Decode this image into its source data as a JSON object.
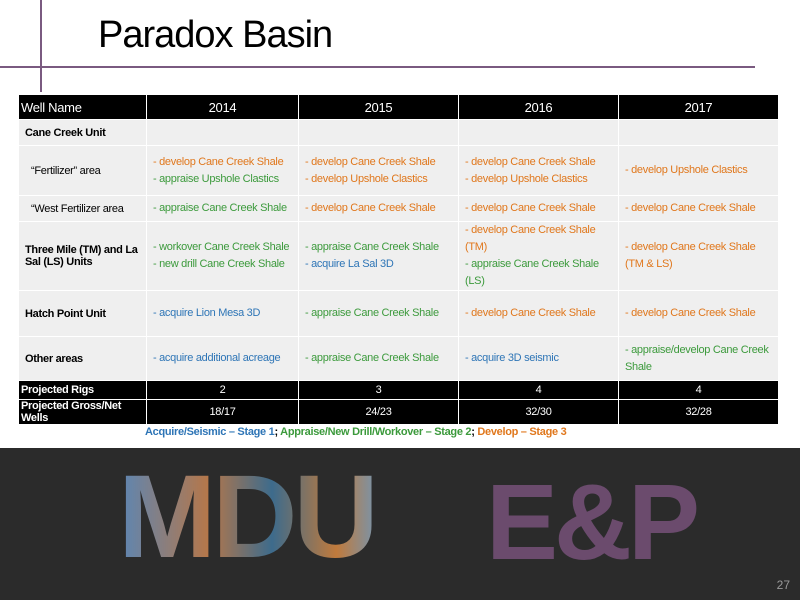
{
  "title": "Paradox Basin",
  "table": {
    "header": [
      "Well Name",
      "2014",
      "2015",
      "2016",
      "2017"
    ],
    "rows": [
      {
        "label": "Cane Creek Unit",
        "cells": [
          [],
          [],
          [],
          []
        ]
      },
      {
        "label": "“Fertilizer” area",
        "cells": [
          [
            {
              "text": "- develop Cane Creek Shale",
              "color": "#e0771c"
            },
            {
              "text": "- appraise Upshole Clastics",
              "color": "#3c9a3c"
            }
          ],
          [
            {
              "text": "- develop Cane Creek Shale",
              "color": "#e0771c"
            },
            {
              "text": "- develop Upshole Clastics",
              "color": "#e0771c"
            }
          ],
          [
            {
              "text": "- develop Cane Creek Shale",
              "color": "#e0771c"
            },
            {
              "text": "- develop Upshole Clastics",
              "color": "#e0771c"
            }
          ],
          [
            {
              "text": "- develop Upshole Clastics",
              "color": "#e0771c"
            }
          ]
        ]
      },
      {
        "label": "“West Fertilizer area",
        "cells": [
          [
            {
              "text": "- appraise Cane Creek Shale",
              "color": "#3c9a3c"
            }
          ],
          [
            {
              "text": "- develop Cane Creek Shale",
              "color": "#e0771c"
            }
          ],
          [
            {
              "text": "- develop Cane Creek Shale",
              "color": "#e0771c"
            }
          ],
          [
            {
              "text": "- develop Cane Creek Shale",
              "color": "#e0771c"
            }
          ]
        ]
      },
      {
        "label": "Three Mile (TM) and La Sal (LS) Units",
        "cells": [
          [
            {
              "text": "- workover Cane Creek Shale",
              "color": "#3c9a3c"
            },
            {
              "text": "- new drill Cane Creek Shale",
              "color": "#3c9a3c"
            }
          ],
          [
            {
              "text": "- appraise Cane Creek Shale",
              "color": "#3c9a3c"
            },
            {
              "text": "- acquire La Sal 3D",
              "color": "#2e75b6"
            }
          ],
          [
            {
              "text": "- develop Cane Creek Shale (TM)",
              "color": "#e0771c"
            },
            {
              "text": "- appraise Cane Creek Shale (LS)",
              "color": "#3c9a3c"
            }
          ],
          [
            {
              "text": "- develop Cane Creek Shale (TM & LS)",
              "color": "#e0771c"
            }
          ]
        ]
      },
      {
        "label": "Hatch Point Unit",
        "cells": [
          [
            {
              "text": "- acquire Lion Mesa 3D",
              "color": "#2e75b6"
            }
          ],
          [
            {
              "text": "- appraise Cane Creek Shale",
              "color": "#3c9a3c"
            }
          ],
          [
            {
              "text": "- develop Cane Creek Shale",
              "color": "#e0771c"
            }
          ],
          [
            {
              "text": "- develop Cane Creek Shale",
              "color": "#e0771c"
            }
          ]
        ]
      },
      {
        "label": "Other areas",
        "cells": [
          [
            {
              "text": "- acquire additional acreage",
              "color": "#2e75b6"
            }
          ],
          [
            {
              "text": "- appraise Cane Creek Shale",
              "color": "#3c9a3c"
            }
          ],
          [
            {
              "text": "- acquire 3D seismic",
              "color": "#2e75b6"
            }
          ],
          [
            {
              "text": "- appraise/develop Cane Creek Shale",
              "color": "#3c9a3c"
            }
          ]
        ]
      }
    ],
    "footer": [
      {
        "label": "Projected Rigs",
        "values": [
          2,
          3,
          4,
          4
        ]
      },
      {
        "label": "Projected Gross/Net Wells",
        "values": [
          "18/17",
          "24/23",
          "32/30",
          "32/28"
        ]
      }
    ]
  },
  "legend": [
    {
      "text": "Acquire/Seismic – Stage 1",
      "color": "#2e75b6"
    },
    {
      "text": "; ",
      "color": "#000000"
    },
    {
      "text": "Appraise/New Drill/Workover – Stage 2",
      "color": "#3c9a3c"
    },
    {
      "text": "; ",
      "color": "#000000"
    },
    {
      "text": "Develop – Stage 3",
      "color": "#e0771c"
    }
  ],
  "banner": {
    "logo_left": "MDU",
    "logo_right": "E&P"
  },
  "page_number": "27"
}
